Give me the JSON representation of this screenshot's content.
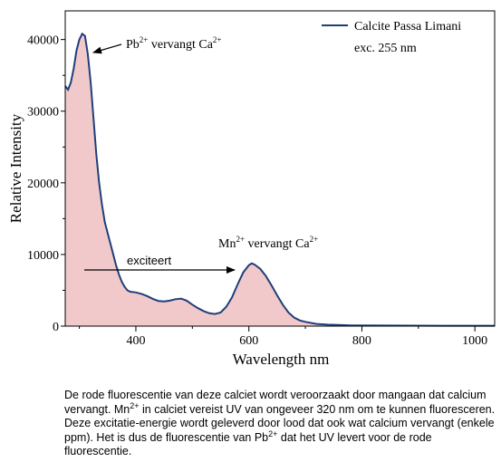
{
  "chart_data": {
    "type": "area",
    "title": "",
    "xlabel": "Wavelength nm",
    "ylabel": "Relative Intensity",
    "xlim": [
      275,
      1035
    ],
    "ylim": [
      0,
      44000
    ],
    "x_ticks": [
      400,
      600,
      800,
      1000
    ],
    "y_ticks": [
      0,
      10000,
      20000,
      30000,
      40000
    ],
    "x_tick_labels": [
      "400",
      "600",
      "800",
      "1000"
    ],
    "y_tick_labels": [
      "0",
      "10000",
      "20000",
      "30000",
      "40000"
    ],
    "grid": false,
    "legend_position": "top-right",
    "legend": {
      "series_name": "Calcite Passa Limani",
      "note": "exc. 255 nm"
    },
    "colors": {
      "line": "#1f3f7a",
      "fill": "#f2c9ca"
    },
    "series": [
      {
        "name": "Calcite Passa Limani",
        "x": [
          275,
          280,
          285,
          290,
          295,
          300,
          305,
          310,
          315,
          320,
          325,
          330,
          335,
          340,
          345,
          350,
          355,
          360,
          365,
          370,
          375,
          380,
          385,
          390,
          400,
          410,
          420,
          430,
          440,
          450,
          460,
          470,
          480,
          490,
          500,
          510,
          520,
          530,
          540,
          550,
          560,
          570,
          580,
          590,
          600,
          605,
          610,
          620,
          630,
          640,
          650,
          660,
          670,
          680,
          690,
          700,
          720,
          740,
          760,
          780,
          800,
          850,
          900,
          950,
          1000,
          1035
        ],
        "y": [
          33500,
          33000,
          34000,
          36000,
          38500,
          40000,
          40800,
          40500,
          38000,
          34000,
          29000,
          24000,
          20000,
          17000,
          14500,
          13000,
          11500,
          10000,
          8500,
          7200,
          6200,
          5500,
          5000,
          4800,
          4700,
          4500,
          4200,
          3800,
          3500,
          3450,
          3550,
          3750,
          3850,
          3550,
          3000,
          2500,
          2100,
          1800,
          1700,
          1900,
          2700,
          4000,
          5800,
          7500,
          8500,
          8750,
          8600,
          8000,
          7000,
          5700,
          4300,
          3000,
          1900,
          1200,
          800,
          600,
          300,
          200,
          150,
          100,
          100,
          80,
          60,
          50,
          50,
          50
        ]
      }
    ],
    "annotations": {
      "pb_base": "Pb",
      "pb_sup": "2+",
      "pb_mid": " vervangt Ca",
      "pb_sup2": "2+",
      "mn_base": "Mn",
      "mn_sup": "2+",
      "mn_mid": " vervangt Ca",
      "mn_sup2": "2+",
      "exciteert": "exciteert"
    }
  },
  "caption": {
    "part1": "De rode fluorescentie van deze calciet wordt veroorzaakt door mangaan dat calcium vervangt. Mn",
    "sup1": "2+",
    "part2": " in calciet vereist UV van ongeveer 320 nm om te kunnen fluoresceren. Deze excitatie-energie wordt geleverd door lood dat ook wat calcium vervangt (enkele ppm). Het is dus de fluorescentie van Pb",
    "sup2": "2+",
    "part3": " dat het UV levert voor de rode fluorescentie."
  }
}
